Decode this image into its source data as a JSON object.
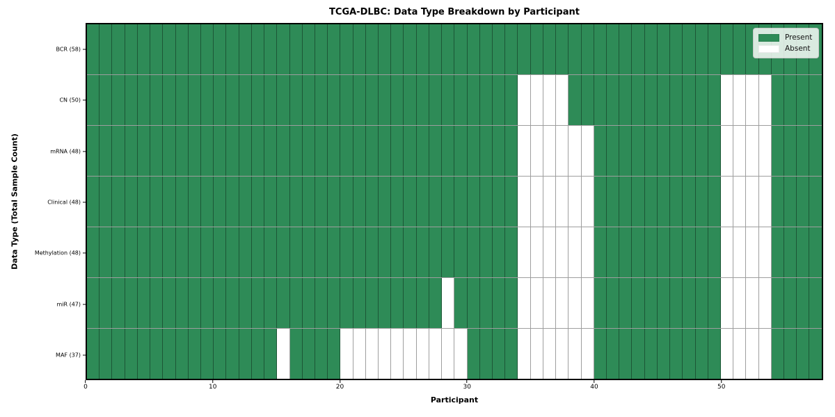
{
  "chart_data": {
    "type": "heatmap",
    "title": "TCGA-DLBC: Data Type Breakdown by Participant",
    "xlabel": "Participant",
    "ylabel": "Data Type (Total Sample Count)",
    "n_participants": 58,
    "x_ticks": [
      0,
      10,
      20,
      30,
      40,
      50
    ],
    "grid": true,
    "legend_position": "upper right",
    "colors": {
      "present": "#2e8b57",
      "absent": "#ffffff"
    },
    "legend": [
      {
        "label": "Present",
        "color": "#2e8b57"
      },
      {
        "label": "Absent",
        "color": "#ffffff"
      }
    ],
    "rows": [
      {
        "label": "BCR (58)",
        "name": "BCR",
        "total_samples": 58,
        "absent": []
      },
      {
        "label": "CN (50)",
        "name": "CN",
        "total_samples": 50,
        "absent": [
          34,
          35,
          36,
          37,
          50,
          51,
          52,
          53
        ]
      },
      {
        "label": "mRNA (48)",
        "name": "mRNA",
        "total_samples": 48,
        "absent": [
          34,
          35,
          36,
          37,
          38,
          39,
          50,
          51,
          52,
          53
        ]
      },
      {
        "label": "Clinical (48)",
        "name": "Clinical",
        "total_samples": 48,
        "absent": [
          34,
          35,
          36,
          37,
          38,
          39,
          50,
          51,
          52,
          53
        ]
      },
      {
        "label": "Methylation (48)",
        "name": "Methylation",
        "total_samples": 48,
        "absent": [
          34,
          35,
          36,
          37,
          38,
          39,
          50,
          51,
          52,
          53
        ]
      },
      {
        "label": "miR (47)",
        "name": "miR",
        "total_samples": 47,
        "absent": [
          28,
          34,
          35,
          36,
          37,
          38,
          39,
          50,
          51,
          52,
          53
        ]
      },
      {
        "label": "MAF (37)",
        "name": "MAF",
        "total_samples": 37,
        "absent": [
          15,
          20,
          21,
          22,
          23,
          24,
          25,
          26,
          27,
          28,
          29,
          34,
          35,
          36,
          37,
          38,
          39,
          50,
          51,
          52,
          53
        ]
      }
    ]
  }
}
